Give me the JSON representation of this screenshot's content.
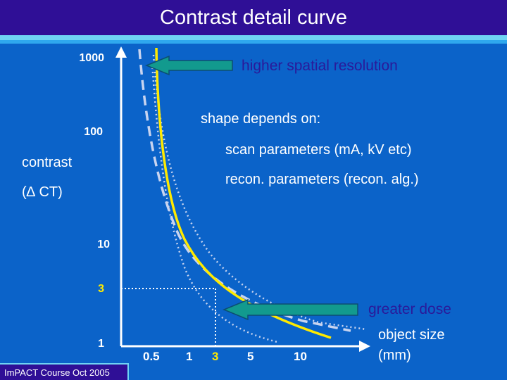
{
  "title": "Contrast detail curve",
  "y_axis": {
    "label_line1": "contrast",
    "label_line2": "(∆ CT)",
    "ticks": [
      "1000",
      "100",
      "10",
      "3",
      "1"
    ]
  },
  "x_axis": {
    "label_line1": "object size",
    "label_line2": "(mm)",
    "ticks": [
      "0.5",
      "1",
      "3",
      "5",
      "10"
    ]
  },
  "annotations": {
    "spatial": "higher spatial resolution",
    "dose": "greater dose",
    "shape_heading": "shape depends on:",
    "scan_params": "scan parameters   (mA, kV etc)",
    "recon_params": "recon. parameters (recon. alg.)"
  },
  "footer": "ImPACT Course Oct 2005",
  "colors": {
    "background": "#0b63c9",
    "title_bar": "#2f0f96",
    "curve": "#ffea00",
    "arrow": "#129a8e",
    "dashed": "#c8d4f0"
  },
  "icons": {
    "arrow_top": "arrow-left-icon",
    "arrow_bottom": "arrow-left-icon"
  }
}
